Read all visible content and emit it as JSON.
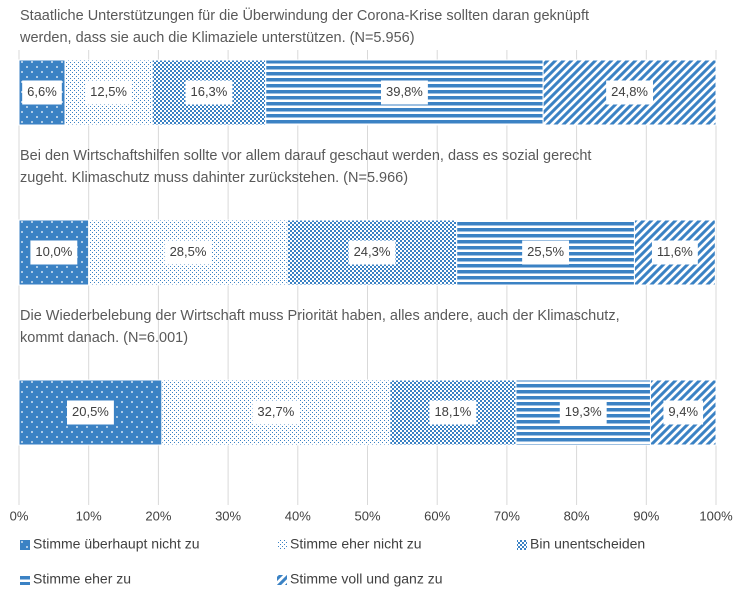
{
  "chart_data": {
    "type": "stacked-bar-horizontal",
    "categories": [
      "Staatliche Unterstützungen für die Überwindung der Corona-Krise sollten daran geknüpft werden, dass sie auch die Klimaziele unterstützen. (N=5.956)",
      "Bei den Wirtschaftshilfen sollte vor allem darauf geschaut werden, dass es sozial gerecht zugeht. Klimaschutz muss dahinter zurückstehen. (N=5.966)",
      "Die Wiederbelebung der Wirtschaft muss Priorität haben, alles andere, auch der Klimaschutz, kommt danach. (N=6.001)"
    ],
    "series": [
      {
        "name": "Stimme überhaupt nicht zu",
        "color": "#3b82c4",
        "pattern": "dots",
        "values": [
          6.6,
          10.0,
          20.5
        ],
        "value_labels": [
          "6,6%",
          "10,0%",
          "20,5%"
        ]
      },
      {
        "name": "Stimme eher nicht zu",
        "color": "#3b82c4",
        "pattern": "light-check",
        "values": [
          12.5,
          28.5,
          32.7
        ],
        "value_labels": [
          "12,5%",
          "28,5%",
          "32,7%"
        ]
      },
      {
        "name": "Bin unentscheiden",
        "color": "#3b82c4",
        "pattern": "dense-check",
        "values": [
          16.3,
          24.3,
          18.1
        ],
        "value_labels": [
          "16,3%",
          "24,3%",
          "18,1%"
        ]
      },
      {
        "name": "Stimme eher zu",
        "color": "#3b82c4",
        "pattern": "horizontal-stripes",
        "values": [
          39.8,
          25.5,
          19.3
        ],
        "value_labels": [
          "39,8%",
          "25,5%",
          "19,3%"
        ]
      },
      {
        "name": "Stimme voll und ganz zu",
        "color": "#3b82c4",
        "pattern": "diagonal-stripes",
        "values": [
          24.8,
          11.6,
          9.4
        ],
        "value_labels": [
          "24,8%",
          "11,6%",
          "9,4%"
        ]
      }
    ],
    "xlim": [
      0,
      100
    ],
    "xticks": [
      {
        "value": 0,
        "label": "0%"
      },
      {
        "value": 10,
        "label": "10%"
      },
      {
        "value": 20,
        "label": "20%"
      },
      {
        "value": 30,
        "label": "30%"
      },
      {
        "value": 40,
        "label": "40%"
      },
      {
        "value": 50,
        "label": "50%"
      },
      {
        "value": 60,
        "label": "60%"
      },
      {
        "value": 70,
        "label": "70%"
      },
      {
        "value": 80,
        "label": "80%"
      },
      {
        "value": 90,
        "label": "90%"
      },
      {
        "value": 100,
        "label": "100%"
      }
    ],
    "grid": true
  }
}
